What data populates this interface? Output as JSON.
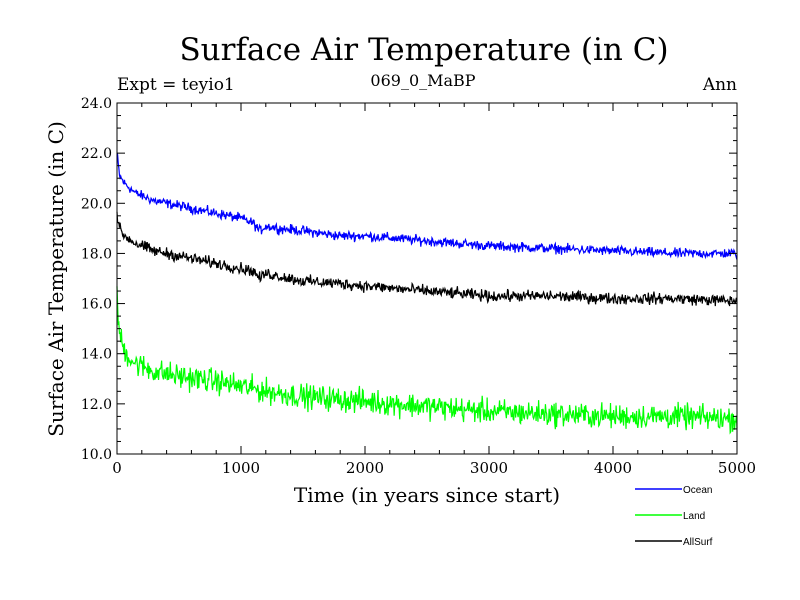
{
  "chart_data": {
    "type": "line",
    "title": "Surface Air Temperature (in C)",
    "subtitle_left": "Expt = teyio1",
    "subtitle_center": "069_0_MaBP",
    "subtitle_right": "Ann",
    "xlabel": "Time (in years since start)",
    "ylabel": "Surface Air Temperature (in C)",
    "xlim": [
      0,
      5000
    ],
    "ylim": [
      10.0,
      24.0
    ],
    "xticks": [
      0,
      1000,
      2000,
      3000,
      4000,
      5000
    ],
    "xtick_labels": [
      "0",
      "1000",
      "2000",
      "3000",
      "4000",
      "5000"
    ],
    "yticks": [
      10.0,
      12.0,
      14.0,
      16.0,
      18.0,
      20.0,
      22.0,
      24.0
    ],
    "ytick_labels": [
      "10.0",
      "12.0",
      "14.0",
      "16.0",
      "18.0",
      "20.0",
      "22.0",
      "24.0"
    ],
    "legend_position": "bottom-right, outside plot",
    "series": [
      {
        "name": "Ocean",
        "color": "#0000ff",
        "noise": 0.12,
        "x": [
          0,
          20,
          60,
          150,
          300,
          500,
          800,
          1000,
          1100,
          1150,
          1200,
          1300,
          1500,
          1800,
          2000,
          2500,
          3000,
          3500,
          4000,
          4500,
          5000
        ],
        "values": [
          22.0,
          21.1,
          20.8,
          20.4,
          20.1,
          19.9,
          19.6,
          19.4,
          19.2,
          18.9,
          19.1,
          19.0,
          18.9,
          18.7,
          18.7,
          18.5,
          18.3,
          18.2,
          18.1,
          18.0,
          18.0
        ]
      },
      {
        "name": "Land",
        "color": "#00ff00",
        "noise": 0.3,
        "x": [
          0,
          20,
          60,
          150,
          300,
          500,
          800,
          1000,
          1200,
          1500,
          2000,
          2500,
          3000,
          3500,
          4000,
          4500,
          5000
        ],
        "values": [
          16.2,
          14.8,
          14.1,
          13.6,
          13.3,
          13.1,
          12.9,
          12.7,
          12.5,
          12.3,
          12.1,
          11.9,
          11.7,
          11.6,
          11.5,
          11.5,
          11.4
        ]
      },
      {
        "name": "AllSurf",
        "color": "#000000",
        "noise": 0.14,
        "x": [
          0,
          20,
          60,
          150,
          300,
          500,
          800,
          1000,
          1100,
          1150,
          1200,
          1300,
          1500,
          1800,
          2000,
          2500,
          3000,
          3500,
          4000,
          4500,
          5000
        ],
        "values": [
          19.6,
          19.0,
          18.7,
          18.4,
          18.1,
          17.9,
          17.6,
          17.4,
          17.3,
          17.0,
          17.2,
          17.1,
          16.9,
          16.8,
          16.7,
          16.5,
          16.3,
          16.3,
          16.2,
          16.2,
          16.1
        ]
      }
    ]
  }
}
